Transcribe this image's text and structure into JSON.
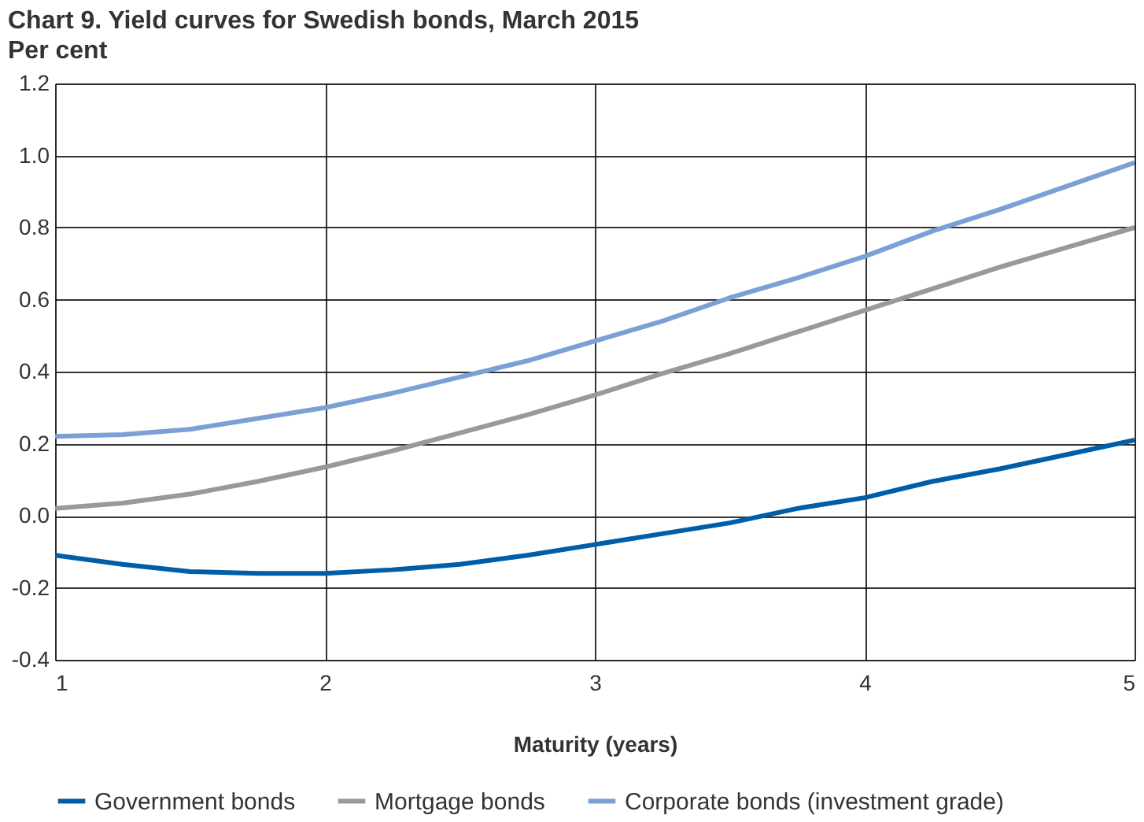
{
  "chart_data": {
    "type": "line",
    "title": "Chart 9.  Yield curves for Swedish bonds, March 2015",
    "subtitle": "Per cent",
    "xlabel": "Maturity (years)",
    "x": [
      1,
      1.25,
      1.5,
      1.75,
      2,
      2.25,
      2.5,
      2.75,
      3,
      3.25,
      3.5,
      3.75,
      4,
      4.25,
      4.5,
      4.75,
      5
    ],
    "series": [
      {
        "name": "Government bonds",
        "color": "#005ea8",
        "values": [
          -0.11,
          -0.135,
          -0.155,
          -0.16,
          -0.16,
          -0.15,
          -0.135,
          -0.11,
          -0.08,
          -0.05,
          -0.02,
          0.02,
          0.05,
          0.095,
          0.13,
          0.17,
          0.21
        ]
      },
      {
        "name": "Mortgage bonds",
        "color": "#999999",
        "values": [
          0.02,
          0.035,
          0.06,
          0.095,
          0.135,
          0.18,
          0.23,
          0.28,
          0.335,
          0.395,
          0.45,
          0.51,
          0.57,
          0.63,
          0.69,
          0.745,
          0.8
        ]
      },
      {
        "name": "Corporate bonds (investment grade)",
        "color": "#7ba0d6",
        "values": [
          0.22,
          0.225,
          0.24,
          0.27,
          0.3,
          0.34,
          0.385,
          0.43,
          0.485,
          0.54,
          0.605,
          0.66,
          0.72,
          0.79,
          0.85,
          0.915,
          0.98
        ]
      }
    ],
    "xlim": [
      1,
      5
    ],
    "xticks": [
      1,
      2,
      3,
      4,
      5
    ],
    "ylim": [
      -0.4,
      1.2
    ],
    "yticks": [
      -0.4,
      -0.2,
      {
        "value": 0,
        "label": "0.0"
      },
      0.2,
      0.4,
      0.6,
      0.8,
      {
        "value": 1,
        "label": "1.0"
      },
      1.2
    ],
    "grid": true,
    "legend": "bottom",
    "marker": "none",
    "line_style": "solid"
  }
}
